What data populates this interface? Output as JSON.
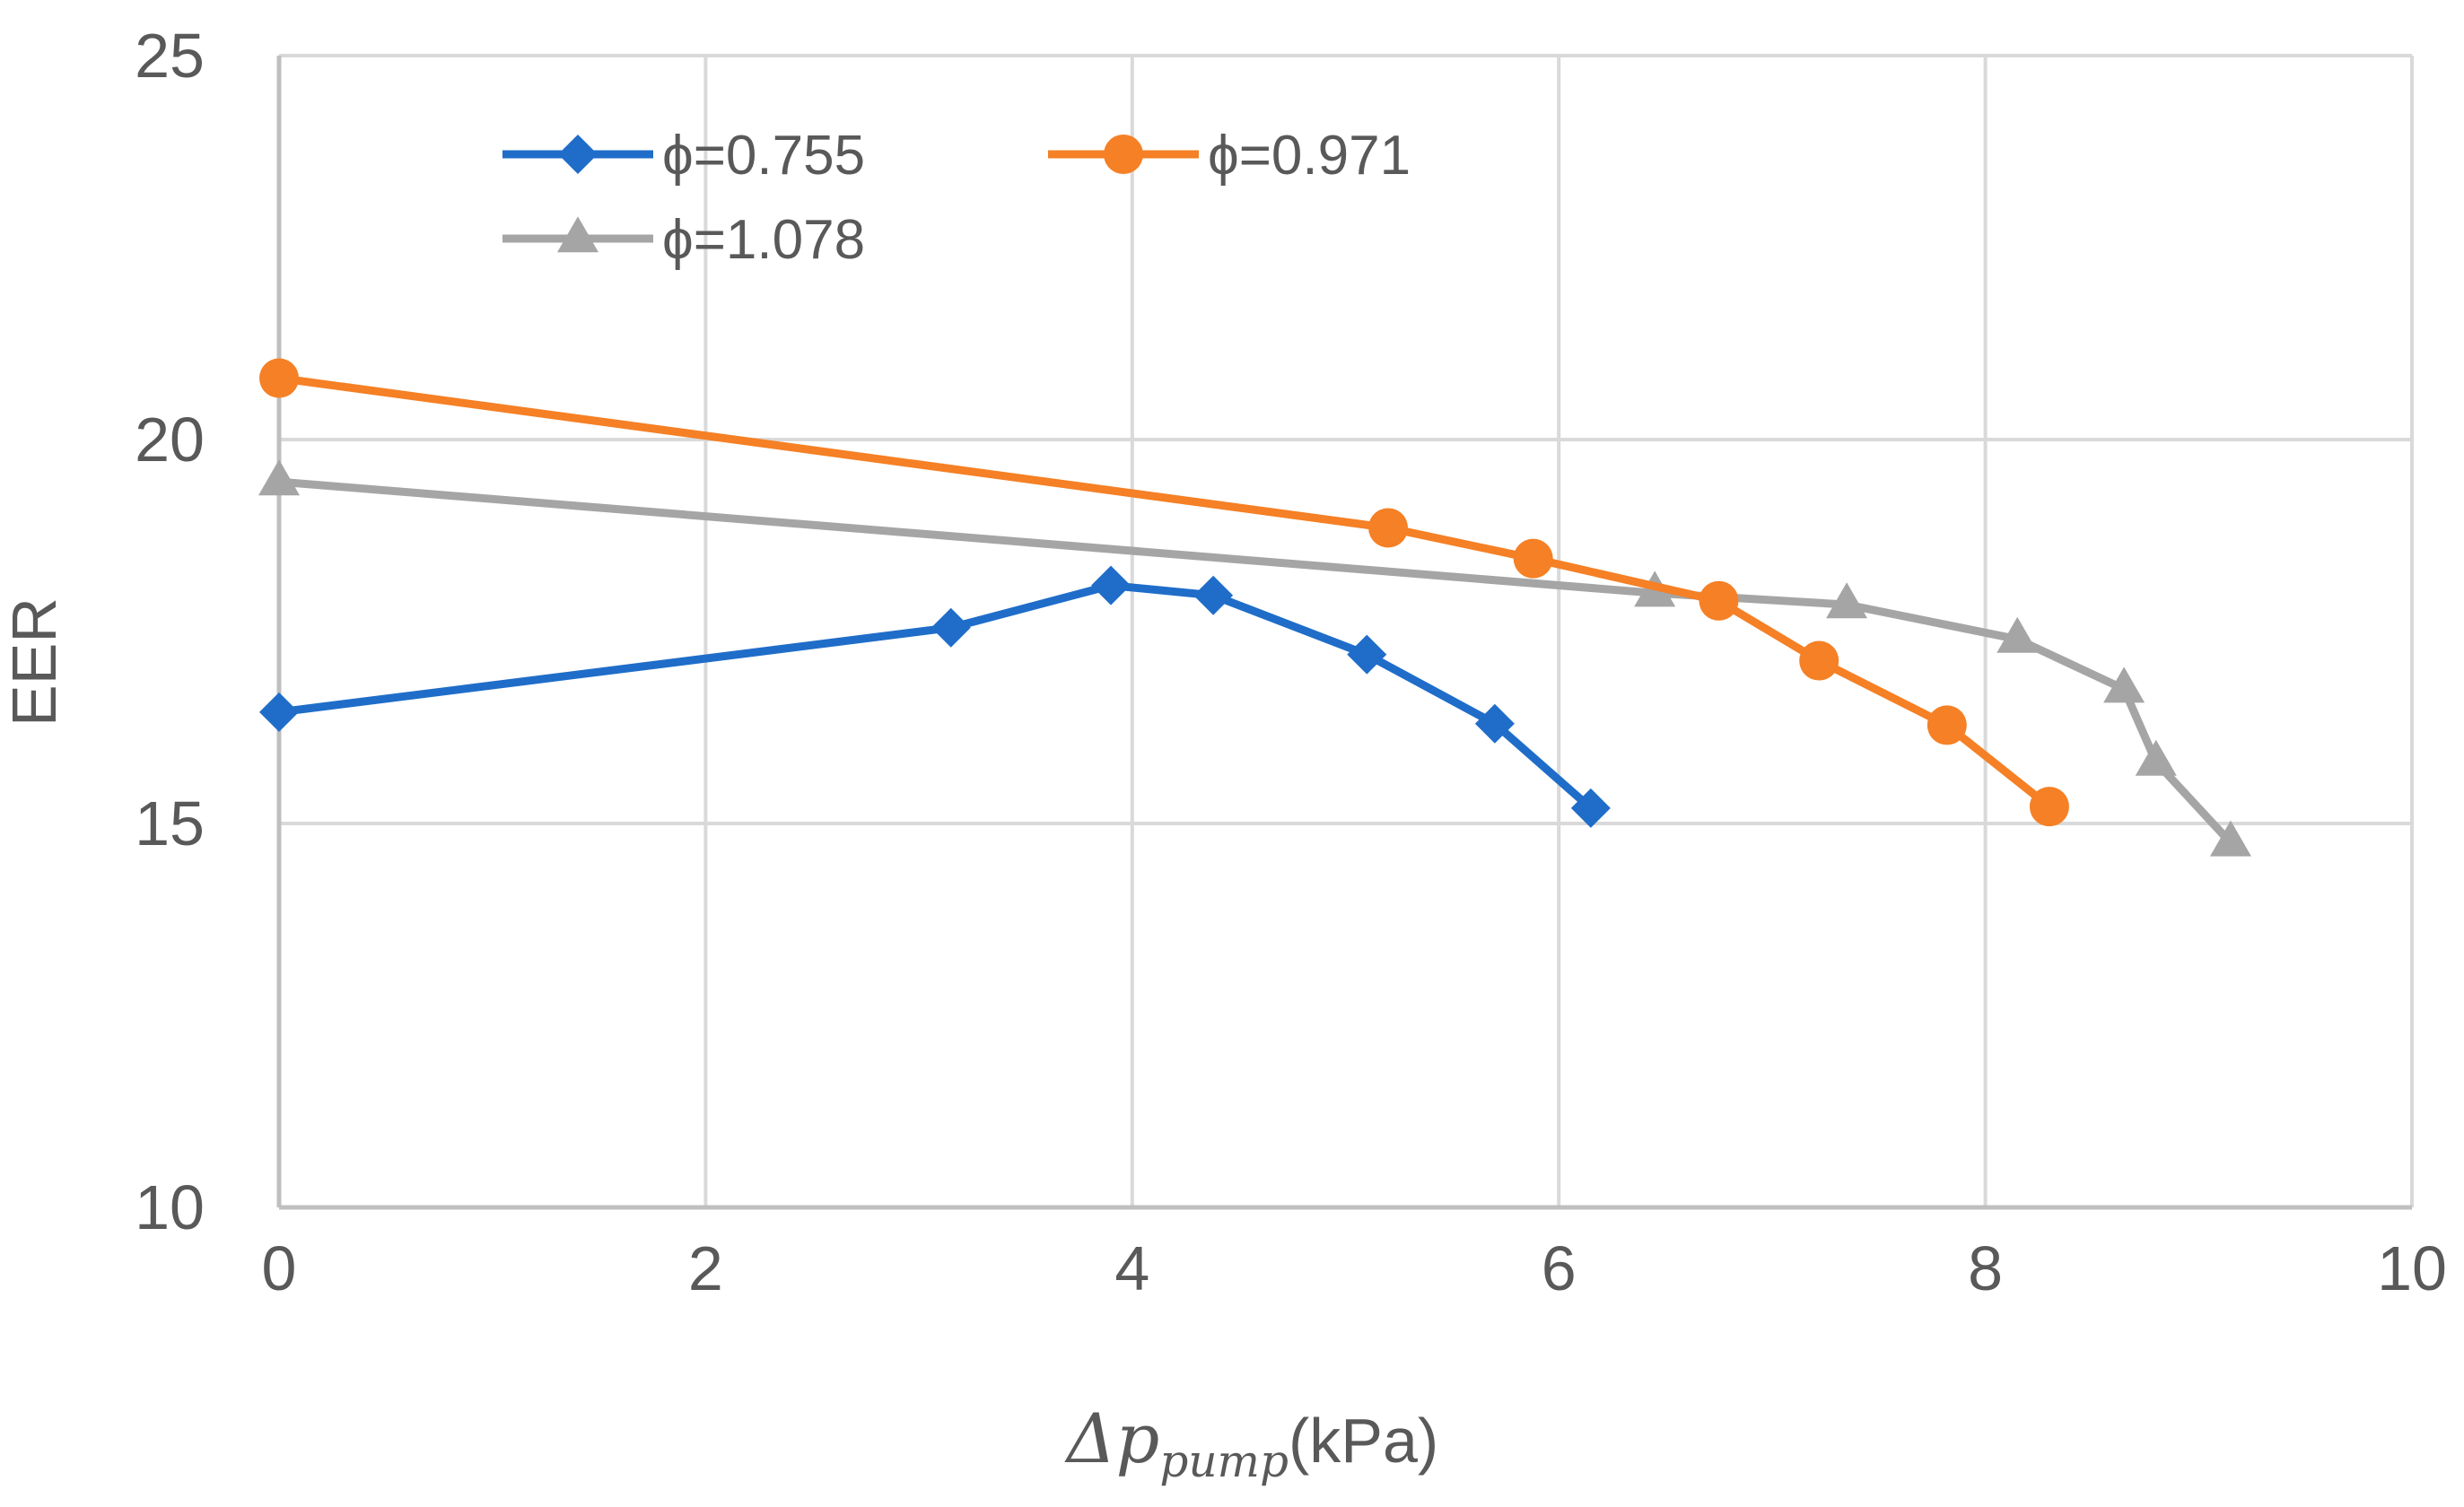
{
  "chart_data": {
    "type": "line",
    "title": "",
    "xlabel": "Δp",
    "xlabel_subscript": "pump",
    "xlabel_unit": "(kPa)",
    "ylabel": "EER",
    "xlim": [
      0,
      10
    ],
    "ylim": [
      10,
      25
    ],
    "xticks": [
      "0",
      "2",
      "4",
      "6",
      "8",
      "10"
    ],
    "yticks": [
      "10",
      "15",
      "20",
      "25"
    ],
    "grid": true,
    "legend_position": "top-left",
    "series": [
      {
        "name": "ϕ=0.755",
        "color": "#1f6dc9",
        "marker": "diamond",
        "x": [
          0,
          3.15,
          3.9,
          4.38,
          5.1,
          5.7,
          6.15
        ],
        "y": [
          16.45,
          17.55,
          18.1,
          17.97,
          17.2,
          16.3,
          15.2
        ]
      },
      {
        "name": "ϕ=0.971",
        "color": "#f58025",
        "marker": "circle",
        "x": [
          0,
          5.2,
          5.88,
          6.75,
          7.22,
          7.82,
          8.3
        ],
        "y": [
          20.8,
          18.85,
          18.45,
          17.9,
          17.12,
          16.28,
          15.22
        ]
      },
      {
        "name": "ϕ=1.078",
        "color": "#a5a5a5",
        "marker": "triangle",
        "x": [
          0,
          6.45,
          7.35,
          8.15,
          8.65,
          8.8,
          9.15
        ],
        "y": [
          19.45,
          18.0,
          17.85,
          17.4,
          16.75,
          15.8,
          14.75
        ]
      }
    ]
  }
}
